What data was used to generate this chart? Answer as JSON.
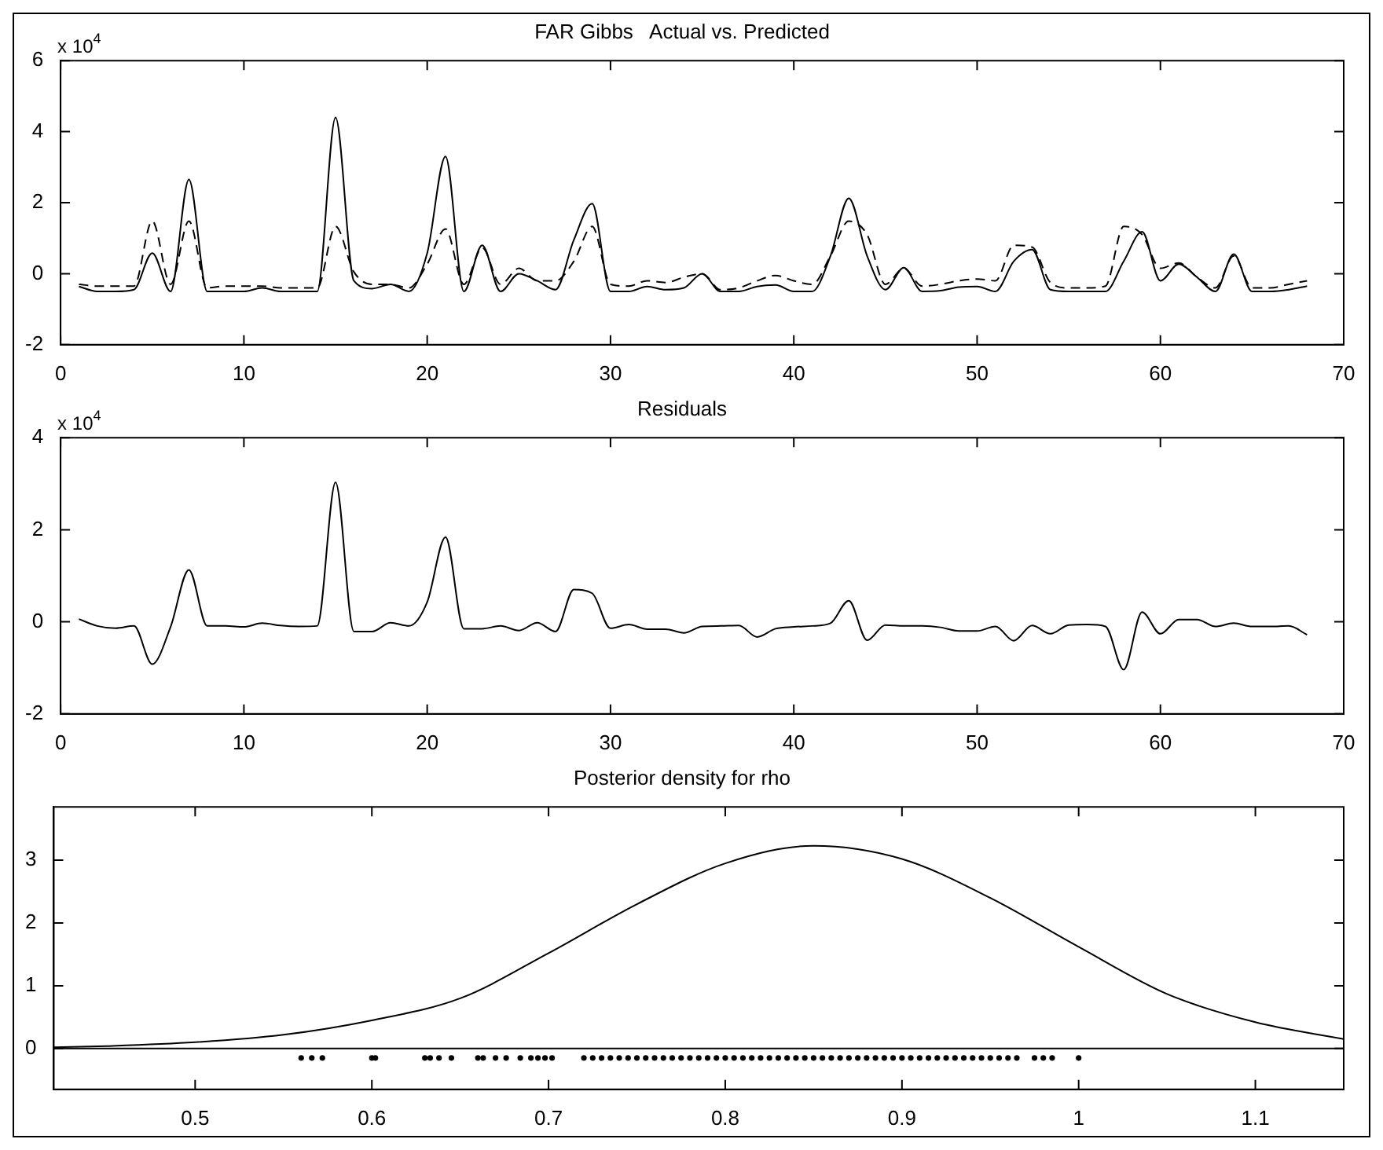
{
  "chart_data": [
    {
      "type": "line",
      "title": "FAR Gibbs   Actual vs. Predicted",
      "annotations": [
        "x 10$^{4}$"
      ],
      "x": [
        1,
        2,
        3,
        4,
        5,
        6,
        7,
        8,
        9,
        10,
        11,
        12,
        13,
        14,
        15,
        16,
        17,
        18,
        19,
        20,
        21,
        22,
        23,
        24,
        25,
        26,
        27,
        28,
        29,
        30,
        31,
        32,
        33,
        34,
        35,
        36,
        37,
        38,
        39,
        40,
        41,
        42,
        43,
        44,
        45,
        46,
        47,
        48,
        49,
        50,
        51,
        52,
        53,
        54,
        55,
        56,
        57,
        58,
        59,
        60,
        61,
        62,
        63,
        64,
        65,
        66,
        67,
        68
      ],
      "series": [
        {
          "color": "#000000",
          "line_style": "solid",
          "values": [
            -0.36,
            -0.5,
            -0.5,
            -0.45,
            0.58,
            -0.5,
            2.65,
            -0.5,
            -0.5,
            -0.5,
            -0.4,
            -0.5,
            -0.5,
            -0.5,
            4.4,
            -0.2,
            -0.42,
            -0.3,
            -0.5,
            0.58,
            3.3,
            -0.5,
            0.8,
            -0.5,
            0,
            -0.2,
            -0.45,
            0.95,
            1.97,
            -0.5,
            -0.5,
            -0.36,
            -0.45,
            -0.4,
            0,
            -0.5,
            -0.5,
            -0.36,
            -0.32,
            -0.5,
            -0.5,
            0.5,
            2.12,
            0.5,
            -0.45,
            0.17,
            -0.5,
            -0.48,
            -0.38,
            -0.36,
            -0.5,
            0.35,
            0.68,
            -0.45,
            -0.5,
            -0.5,
            -0.5,
            0.35,
            1.18,
            -0.2,
            0.27,
            -0.1,
            -0.5,
            0.55,
            -0.5,
            -0.5,
            -0.45,
            -0.35
          ]
        },
        {
          "color": "#000000",
          "line_style": "dashed",
          "values": [
            -0.3,
            -0.35,
            -0.35,
            -0.35,
            1.48,
            -0.3,
            1.48,
            -0.4,
            -0.35,
            -0.35,
            -0.35,
            -0.4,
            -0.4,
            -0.4,
            1.33,
            0.05,
            -0.3,
            -0.3,
            -0.4,
            0.27,
            1.26,
            -0.3,
            0.73,
            -0.3,
            0.15,
            -0.2,
            -0.2,
            0.35,
            1.33,
            -0.3,
            -0.35,
            -0.2,
            -0.25,
            -0.1,
            0,
            -0.45,
            -0.4,
            -0.2,
            -0.05,
            -0.2,
            -0.3,
            0.5,
            1.48,
            1.1,
            -0.3,
            0.15,
            -0.35,
            -0.3,
            -0.2,
            -0.15,
            -0.2,
            0.8,
            0.75,
            -0.25,
            -0.4,
            -0.4,
            -0.35,
            1.33,
            1.1,
            0.15,
            0.3,
            -0.1,
            -0.4,
            0.5,
            -0.4,
            -0.4,
            -0.3,
            -0.2
          ]
        }
      ],
      "xlim": [
        0,
        70
      ],
      "xticks": [
        0,
        10,
        20,
        30,
        40,
        50,
        60,
        70
      ],
      "ylim": [
        -2,
        6
      ],
      "yticks": [
        -2,
        0,
        2,
        4,
        6
      ]
    },
    {
      "type": "line",
      "title": "Residuals",
      "annotations": [
        "x 10$^{4}$"
      ],
      "x": [
        1,
        2,
        3,
        4,
        5,
        6,
        7,
        8,
        9,
        10,
        11,
        12,
        13,
        14,
        15,
        16,
        17,
        18,
        19,
        20,
        21,
        22,
        23,
        24,
        25,
        26,
        27,
        28,
        29,
        30,
        31,
        32,
        33,
        34,
        35,
        36,
        37,
        38,
        39,
        40,
        41,
        42,
        43,
        44,
        45,
        46,
        47,
        48,
        49,
        50,
        51,
        52,
        53,
        54,
        55,
        56,
        57,
        58,
        59,
        60,
        61,
        62,
        63,
        64,
        65,
        66,
        67,
        68
      ],
      "series": [
        {
          "color": "#000000",
          "line_style": "solid",
          "values": [
            0.06,
            -0.09,
            -0.14,
            -0.09,
            -0.92,
            -0.11,
            1.13,
            -0.09,
            -0.09,
            -0.11,
            -0.03,
            -0.08,
            -0.1,
            -0.09,
            3.03,
            -0.21,
            -0.21,
            -0.02,
            -0.09,
            0.43,
            1.84,
            -0.15,
            -0.15,
            -0.09,
            -0.19,
            -0.02,
            -0.21,
            0.7,
            0.62,
            -0.14,
            -0.06,
            -0.16,
            -0.16,
            -0.24,
            -0.1,
            -0.09,
            -0.08,
            -0.33,
            -0.15,
            -0.11,
            -0.09,
            -0.03,
            0.46,
            -0.4,
            -0.07,
            -0.09,
            -0.09,
            -0.12,
            -0.2,
            -0.2,
            -0.1,
            -0.41,
            -0.08,
            -0.26,
            -0.07,
            -0.06,
            -0.1,
            -1.04,
            0.21,
            -0.26,
            0.05,
            0.05,
            -0.1,
            -0.03,
            -0.1,
            -0.1,
            -0.09,
            -0.28
          ]
        }
      ],
      "xlim": [
        0,
        70
      ],
      "xticks": [
        0,
        10,
        20,
        30,
        40,
        50,
        60,
        70
      ],
      "ylim": [
        -2,
        4
      ],
      "yticks": [
        -2,
        0,
        2,
        4
      ]
    },
    {
      "type": "line",
      "title": "Posterior density for rho",
      "series": [
        {
          "color": "#000000",
          "line_style": "solid",
          "x": [
            0.42,
            0.45,
            0.5,
            0.55,
            0.6,
            0.65,
            0.7,
            0.75,
            0.8,
            0.85,
            0.9,
            0.95,
            1.0,
            1.05,
            1.1,
            1.15
          ],
          "values": [
            0.02,
            0.04,
            0.1,
            0.22,
            0.45,
            0.8,
            1.52,
            2.3,
            2.95,
            3.23,
            3.02,
            2.4,
            1.62,
            0.87,
            0.42,
            0.15
          ]
        },
        {
          "type": "scatter",
          "color": "#000000",
          "marker": "circle",
          "x": [
            0.56,
            0.566,
            0.572,
            0.6,
            0.602,
            0.63,
            0.633,
            0.638,
            0.645,
            0.66,
            0.663,
            0.67,
            0.676,
            0.684,
            0.69,
            0.694,
            0.698,
            0.702,
            0.72,
            0.725,
            0.73,
            0.735,
            0.74,
            0.745,
            0.75,
            0.755,
            0.76,
            0.765,
            0.77,
            0.775,
            0.78,
            0.785,
            0.79,
            0.795,
            0.8,
            0.805,
            0.81,
            0.815,
            0.82,
            0.825,
            0.83,
            0.835,
            0.84,
            0.845,
            0.85,
            0.855,
            0.86,
            0.865,
            0.87,
            0.875,
            0.88,
            0.885,
            0.89,
            0.895,
            0.9,
            0.905,
            0.91,
            0.915,
            0.92,
            0.925,
            0.93,
            0.935,
            0.94,
            0.945,
            0.95,
            0.955,
            0.96,
            0.965,
            0.975,
            0.98,
            0.985,
            1.0
          ],
          "values": [
            -0.15,
            -0.15,
            -0.15,
            -0.15,
            -0.15,
            -0.15,
            -0.15,
            -0.15,
            -0.15,
            -0.15,
            -0.15,
            -0.15,
            -0.15,
            -0.15,
            -0.15,
            -0.15,
            -0.15,
            -0.15,
            -0.15,
            -0.15,
            -0.15,
            -0.15,
            -0.15,
            -0.15,
            -0.15,
            -0.15,
            -0.15,
            -0.15,
            -0.15,
            -0.15,
            -0.15,
            -0.15,
            -0.15,
            -0.15,
            -0.15,
            -0.15,
            -0.15,
            -0.15,
            -0.15,
            -0.15,
            -0.15,
            -0.15,
            -0.15,
            -0.15,
            -0.15,
            -0.15,
            -0.15,
            -0.15,
            -0.15,
            -0.15,
            -0.15,
            -0.15,
            -0.15,
            -0.15,
            -0.15,
            -0.15,
            -0.15,
            -0.15,
            -0.15,
            -0.15,
            -0.15,
            -0.15,
            -0.15,
            -0.15,
            -0.15,
            -0.15,
            -0.15,
            -0.15,
            -0.15,
            -0.15,
            -0.15,
            -0.15
          ]
        }
      ],
      "ref_lines": [
        {
          "axis": "y",
          "value": 0
        }
      ],
      "xlim": [
        0.42,
        1.15
      ],
      "xticks": [
        0.5,
        0.6,
        0.7,
        0.8,
        0.9,
        1,
        1.1
      ],
      "ylim": [
        -0.65,
        3.85
      ],
      "yticks": [
        0,
        1,
        2,
        3
      ]
    }
  ]
}
